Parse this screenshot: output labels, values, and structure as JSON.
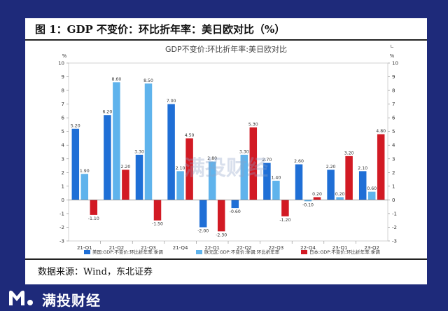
{
  "header": {
    "title": "图 1：GDP 不变价：环比折年率：美日欧对比（%）"
  },
  "source": {
    "text": "数据来源：Wind，东北证券"
  },
  "brand": {
    "name": "满投财经",
    "watermark": "满投财经"
  },
  "colors": {
    "us": "#1f6fd6",
    "eu": "#5fb3ec",
    "jp": "#d21a24",
    "background": "#1e2a7a"
  },
  "chart_data": {
    "type": "bar",
    "title": "GDP不变价:环比折年率:美日欧对比",
    "y_unit_left": "%",
    "y_unit_right": "%",
    "corner_mark": "ㄴ",
    "ylim": [
      -3,
      10
    ],
    "yticks": [
      "-3",
      "-2",
      "-1",
      "0",
      "1",
      "2",
      "3",
      "4",
      "5",
      "6",
      "7",
      "8",
      "9",
      "10"
    ],
    "grid": false,
    "legend_position": "bottom",
    "categories": [
      "21-Q1",
      "21-Q2",
      "21-Q3",
      "21-Q4",
      "22-Q1",
      "22-Q2",
      "22-Q3",
      "22-Q4",
      "23-Q1",
      "23-Q2"
    ],
    "series": [
      {
        "name": "美国:GDP:不变价:环比折年率:季调",
        "color": "#1f6fd6",
        "values": [
          5.2,
          6.2,
          3.3,
          7.0,
          -2.0,
          -0.6,
          2.7,
          2.6,
          2.2,
          2.1
        ],
        "labels": [
          "5.20",
          "6.20",
          "3.30",
          "7.00",
          "-2.00",
          "-0.60",
          "2.70",
          "2.60",
          "2.20",
          "2.10"
        ]
      },
      {
        "name": "欧元区:GDP:不变价:季调:环比折年率",
        "color": "#5fb3ec",
        "values": [
          1.9,
          8.6,
          8.5,
          2.1,
          2.8,
          3.3,
          1.4,
          -0.1,
          0.2,
          0.6
        ],
        "labels": [
          "1.90",
          "8.60",
          "8.50",
          "2.10",
          "2.80",
          "3.30",
          "1.40",
          "-0.10",
          "0.20",
          "0.60"
        ]
      },
      {
        "name": "日本:GDP:不变价:环比折年率:季调",
        "color": "#d21a24",
        "values": [
          -1.1,
          2.2,
          -1.5,
          4.5,
          -2.3,
          5.3,
          -1.2,
          0.2,
          3.2,
          4.8
        ],
        "labels": [
          "-1.10",
          "2.20",
          "-1.50",
          "4.50",
          "-2.30",
          "5.30",
          "-1.20",
          "0.20",
          "3.20",
          "4.80"
        ]
      }
    ]
  }
}
